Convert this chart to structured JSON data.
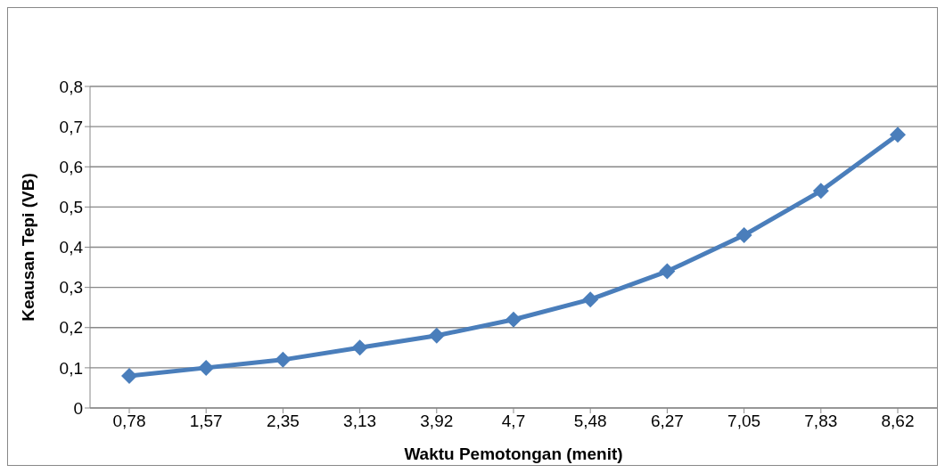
{
  "chart_data": {
    "type": "line",
    "xlabel": "Waktu Pemotongan (menit)",
    "ylabel": "Keausan Tepi (VB)",
    "categories": [
      "0,78",
      "1,57",
      "2,35",
      "3,13",
      "3,92",
      "4,7",
      "5,48",
      "6,27",
      "7,05",
      "7,83",
      "8,62"
    ],
    "series": [
      {
        "color": "#4a7ebb",
        "values": [
          0.08,
          0.1,
          0.12,
          0.15,
          0.18,
          0.22,
          0.27,
          0.34,
          0.43,
          0.54,
          0.68
        ]
      }
    ],
    "ylim": [
      0,
      0.8
    ],
    "yticks": [
      0,
      {
        "value": 0.1,
        "label": "0,1"
      },
      {
        "value": 0.2,
        "label": "0,2"
      },
      {
        "value": 0.3,
        "label": "0,3"
      },
      {
        "value": 0.4,
        "label": "0,4"
      },
      {
        "value": 0.5,
        "label": "0,5"
      },
      {
        "value": 0.6,
        "label": "0,6"
      },
      {
        "value": 0.7,
        "label": "0,7"
      },
      {
        "value": 0.8,
        "label": "0,8"
      }
    ],
    "grid": "y",
    "legend": false,
    "marker": "diamond",
    "line_style": "solid"
  }
}
